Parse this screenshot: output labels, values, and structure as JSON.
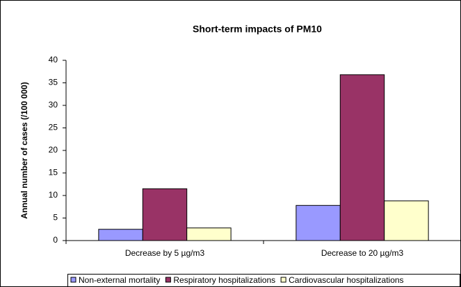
{
  "chart_data": {
    "type": "bar",
    "title": "Short-term impacts of PM10",
    "y_label": "Annual number of cases (/100 000)",
    "categories": [
      "Decrease by 5 µg/m3",
      "Decrease to 20 µg/m3"
    ],
    "series": [
      {
        "name": "Non-external mortality",
        "color": "#9999ff",
        "values": [
          2.5,
          7.8
        ]
      },
      {
        "name": "Respiratory hospitalizations",
        "color": "#993366",
        "values": [
          11.5,
          36.8
        ]
      },
      {
        "name": "Cardiovascular hospitalizations",
        "color": "#ffffcc",
        "values": [
          2.8,
          8.8
        ]
      }
    ],
    "ylim": [
      0,
      40
    ],
    "yticks": [
      0,
      5,
      10,
      15,
      20,
      25,
      30,
      35,
      40
    ],
    "grid": false,
    "legend": "bottom"
  }
}
